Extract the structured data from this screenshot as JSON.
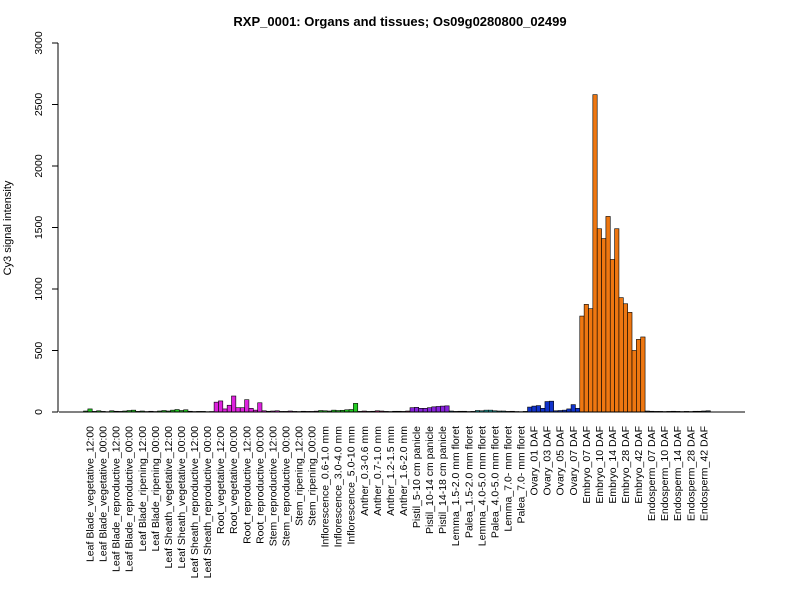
{
  "chart_data": {
    "type": "bar",
    "title": "RXP_0001: Organs and tissues; Os09g0280800_02499",
    "ylabel": "Cy3 signal intensity",
    "xlabel": "",
    "ylim": [
      0,
      3000
    ],
    "yticks": [
      0,
      500,
      1000,
      1500,
      2000,
      2500,
      3000
    ],
    "grid": false,
    "legend": "none",
    "categories": [
      "Leaf Blade_vegetative_12:00",
      "Leaf Blade_vegetative_00:00",
      "Leaf Blade_reproductive_12:00",
      "Leaf Blade_reproductive_00:00",
      "Leaf Blade_ripening_12:00",
      "Leaf Blade_ripening_00:00",
      "Leaf Sheath_vegetative_12:00",
      "Leaf Sheath_vegetative_00:00",
      "Leaf Sheath_reproductive_12:00",
      "Leaf Sheath_reproductive_00:00",
      "Root_vegetative_12:00",
      "Root_vegetative_00:00",
      "Root_reproductive_12:00",
      "Root_reproductive_00:00",
      "Stem_reproductive_12:00",
      "Stem_reproductive_00:00",
      "Stem_ripening_12:00",
      "Stem_ripening_00:00",
      "Inflorescence_0.6-1.0 mm",
      "Inflorescence_3.0-4.0 mm",
      "Inflorescence_5.0-10 mm",
      "Anther_0.3-0.6 mm",
      "Anther_0.7-1.0 mm",
      "Anther_1.2-1.5 mm",
      "Anther_1.6-2.0 mm",
      "Pistil_5-10 cm panicle",
      "Pistil_10-14 cm panicle",
      "Pistil_14-18 cm panicle",
      "Lemma_1.5-2.0 mm floret",
      "Palea_1.5-2.0 mm floret",
      "Lemma_4.0-5.0 mm floret",
      "Palea_4.0-5.0 mm floret",
      "Lemma_7.0- mm floret",
      "Palea_7.0- mm floret",
      "Ovary_01 DAF",
      "Ovary_03 DAF",
      "Ovary_05 DAF",
      "Ovary_07 DAF",
      "Embryo_07 DAF",
      "Embryo_10 DAF",
      "Embryo_14 DAF",
      "Embryo_28 DAF",
      "Embryo_42 DAF",
      "Endosperm_07 DAF",
      "Endosperm_10 DAF",
      "Endosperm_14 DAF",
      "Endosperm_28 DAF",
      "Endosperm_42 DAF"
    ],
    "groups": [
      {
        "color": "#22cc22",
        "values": [
          8,
          25,
          5
        ]
      },
      {
        "color": "#22cc22",
        "values": [
          10,
          5,
          3
        ]
      },
      {
        "color": "#22cc22",
        "values": [
          10,
          6,
          5
        ]
      },
      {
        "color": "#22cc22",
        "values": [
          8,
          12,
          15
        ]
      },
      {
        "color": "#22cc22",
        "values": [
          5,
          8,
          4
        ]
      },
      {
        "color": "#22cc22",
        "values": [
          6,
          4,
          8
        ]
      },
      {
        "color": "#22cc22",
        "values": [
          12,
          8,
          15
        ]
      },
      {
        "color": "#22cc22",
        "values": [
          20,
          12,
          18
        ]
      },
      {
        "color": "#22cc22",
        "values": [
          6,
          4,
          5
        ]
      },
      {
        "color": "#22cc22",
        "values": [
          5,
          3,
          4
        ]
      },
      {
        "color": "#dd22dd",
        "values": [
          80,
          90,
          25
        ]
      },
      {
        "color": "#dd22dd",
        "values": [
          55,
          130,
          35
        ]
      },
      {
        "color": "#dd22dd",
        "values": [
          35,
          100,
          30
        ]
      },
      {
        "color": "#dd22dd",
        "values": [
          15,
          75,
          10
        ]
      },
      {
        "color": "#dd22dd",
        "values": [
          6,
          8,
          10
        ]
      },
      {
        "color": "#dd22dd",
        "values": [
          5,
          5,
          8
        ]
      },
      {
        "color": "#dd22dd",
        "values": [
          5,
          4,
          6
        ]
      },
      {
        "color": "#dd22dd",
        "values": [
          5,
          5,
          7
        ]
      },
      {
        "color": "#22cc22",
        "values": [
          12,
          10,
          8
        ]
      },
      {
        "color": "#22cc22",
        "values": [
          15,
          12,
          14
        ]
      },
      {
        "color": "#22cc22",
        "values": [
          18,
          20,
          70
        ]
      },
      {
        "color": "#cc2277",
        "values": [
          5,
          8,
          5
        ]
      },
      {
        "color": "#cc2277",
        "values": [
          6,
          10,
          8
        ]
      },
      {
        "color": "#cc2277",
        "values": [
          5,
          4,
          6
        ]
      },
      {
        "color": "#cc2277",
        "values": [
          6,
          5,
          8
        ]
      },
      {
        "color": "#8822dd",
        "values": [
          35,
          38,
          30
        ]
      },
      {
        "color": "#8822dd",
        "values": [
          30,
          35,
          42
        ]
      },
      {
        "color": "#8822dd",
        "values": [
          45,
          48,
          50
        ]
      },
      {
        "color": "#2277aa",
        "values": [
          8,
          5,
          6
        ]
      },
      {
        "color": "#2277aa",
        "values": [
          6,
          4,
          5
        ]
      },
      {
        "color": "#22aaaa",
        "values": [
          12,
          10,
          15
        ]
      },
      {
        "color": "#22aaaa",
        "values": [
          15,
          10,
          8
        ]
      },
      {
        "color": "#22aaaa",
        "values": [
          8,
          5,
          6
        ]
      },
      {
        "color": "#22aaaa",
        "values": [
          4,
          3,
          5
        ]
      },
      {
        "color": "#1133cc",
        "values": [
          40,
          48,
          52
        ]
      },
      {
        "color": "#1133cc",
        "values": [
          30,
          85,
          88
        ]
      },
      {
        "color": "#1133cc",
        "values": [
          10,
          12,
          15
        ]
      },
      {
        "color": "#1133cc",
        "values": [
          25,
          60,
          30
        ]
      },
      {
        "color": "#ee7711",
        "values": [
          780,
          875,
          840
        ]
      },
      {
        "color": "#ee7711",
        "values": [
          2580,
          1490,
          1410
        ]
      },
      {
        "color": "#ee7711",
        "values": [
          1590,
          1240,
          1490
        ]
      },
      {
        "color": "#ee7711",
        "values": [
          930,
          880,
          810
        ]
      },
      {
        "color": "#ee7711",
        "values": [
          500,
          590,
          610
        ]
      },
      {
        "color": "#334455",
        "values": [
          8,
          6,
          5
        ]
      },
      {
        "color": "#334455",
        "values": [
          5,
          4,
          5
        ]
      },
      {
        "color": "#334455",
        "values": [
          6,
          5,
          4
        ]
      },
      {
        "color": "#334455",
        "values": [
          5,
          4,
          6
        ]
      },
      {
        "color": "#334455",
        "values": [
          6,
          8,
          10
        ]
      }
    ]
  }
}
